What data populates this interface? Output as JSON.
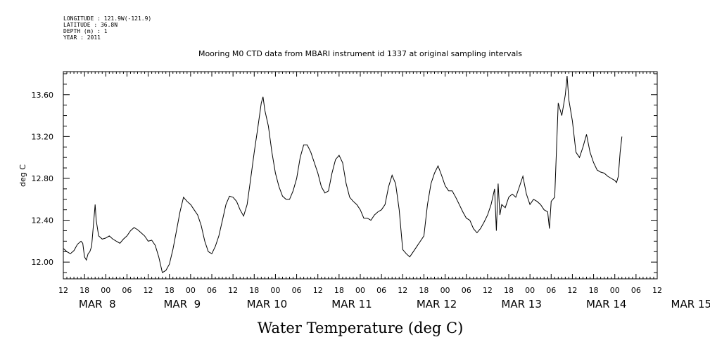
{
  "header": {
    "longitude": "LONGITUDE : 121.9W(-121.9)",
    "latitude": "LATITUDE : 36.8N",
    "depth": "DEPTH (m) : 1",
    "year": "YEAR : 2011"
  },
  "chart_data": {
    "type": "line",
    "title": "Mooring M0 CTD data from MBARI instrument id 1337 at original sampling intervals",
    "xlabel": "Water Temperature (deg C)",
    "ylabel": "deg C",
    "xlim_hours": [
      0,
      168
    ],
    "ylim": [
      11.84,
      13.82
    ],
    "y_ticks": [
      "12.00",
      "12.40",
      "12.80",
      "13.20",
      "13.60"
    ],
    "x_hour_labels": [
      "12",
      "18",
      "00",
      "06",
      "12",
      "18",
      "00",
      "06",
      "12",
      "18",
      "00",
      "06",
      "12",
      "18",
      "00",
      "06",
      "12",
      "18",
      "00",
      "06",
      "12",
      "18",
      "00",
      "06",
      "12",
      "18",
      "00",
      "06",
      "12"
    ],
    "x_day_labels": [
      "MAR  8",
      "MAR  9",
      "MAR 10",
      "MAR 11",
      "MAR 12",
      "MAR 13",
      "MAR 14",
      "MAR 15"
    ],
    "grid": false,
    "series": [
      {
        "points": [
          [
            0,
            12.13
          ],
          [
            1,
            12.1
          ],
          [
            2,
            12.08
          ],
          [
            3,
            12.11
          ],
          [
            4,
            12.17
          ],
          [
            5,
            12.2
          ],
          [
            5.5,
            12.18
          ],
          [
            6,
            12.05
          ],
          [
            6.5,
            12.02
          ],
          [
            7,
            12.08
          ],
          [
            7.5,
            12.1
          ],
          [
            8,
            12.15
          ],
          [
            8.5,
            12.35
          ],
          [
            9,
            12.55
          ],
          [
            9.3,
            12.4
          ],
          [
            10,
            12.25
          ],
          [
            11,
            12.22
          ],
          [
            12,
            12.23
          ],
          [
            13,
            12.25
          ],
          [
            14,
            12.22
          ],
          [
            15,
            12.2
          ],
          [
            16,
            12.18
          ],
          [
            17,
            12.22
          ],
          [
            18,
            12.25
          ],
          [
            19,
            12.3
          ],
          [
            20,
            12.33
          ],
          [
            21,
            12.31
          ],
          [
            22,
            12.28
          ],
          [
            23,
            12.25
          ],
          [
            24,
            12.2
          ],
          [
            25,
            12.21
          ],
          [
            26,
            12.16
          ],
          [
            27,
            12.05
          ],
          [
            28,
            11.9
          ],
          [
            29,
            11.92
          ],
          [
            30,
            11.98
          ],
          [
            31,
            12.12
          ],
          [
            32,
            12.3
          ],
          [
            33,
            12.48
          ],
          [
            34,
            12.62
          ],
          [
            35,
            12.58
          ],
          [
            36,
            12.55
          ],
          [
            37,
            12.5
          ],
          [
            38,
            12.45
          ],
          [
            39,
            12.35
          ],
          [
            40,
            12.2
          ],
          [
            41,
            12.1
          ],
          [
            42,
            12.08
          ],
          [
            43,
            12.15
          ],
          [
            44,
            12.25
          ],
          [
            45,
            12.4
          ],
          [
            46,
            12.55
          ],
          [
            47,
            12.63
          ],
          [
            48,
            12.62
          ],
          [
            49,
            12.58
          ],
          [
            50,
            12.5
          ],
          [
            51,
            12.44
          ],
          [
            52,
            12.55
          ],
          [
            53,
            12.8
          ],
          [
            54,
            13.05
          ],
          [
            55,
            13.28
          ],
          [
            56,
            13.52
          ],
          [
            56.5,
            13.58
          ],
          [
            57,
            13.45
          ],
          [
            58,
            13.3
          ],
          [
            59,
            13.05
          ],
          [
            60,
            12.85
          ],
          [
            61,
            12.72
          ],
          [
            62,
            12.63
          ],
          [
            63,
            12.6
          ],
          [
            64,
            12.6
          ],
          [
            65,
            12.68
          ],
          [
            66,
            12.8
          ],
          [
            67,
            13.0
          ],
          [
            68,
            13.12
          ],
          [
            69,
            13.12
          ],
          [
            70,
            13.05
          ],
          [
            71,
            12.95
          ],
          [
            72,
            12.85
          ],
          [
            73,
            12.72
          ],
          [
            74,
            12.66
          ],
          [
            75,
            12.68
          ],
          [
            76,
            12.85
          ],
          [
            77,
            12.98
          ],
          [
            78,
            13.02
          ],
          [
            79,
            12.95
          ],
          [
            80,
            12.75
          ],
          [
            81,
            12.62
          ],
          [
            82,
            12.58
          ],
          [
            83,
            12.55
          ],
          [
            84,
            12.5
          ],
          [
            85,
            12.42
          ],
          [
            86,
            12.42
          ],
          [
            87,
            12.4
          ],
          [
            88,
            12.45
          ],
          [
            89,
            12.48
          ],
          [
            90,
            12.5
          ],
          [
            91,
            12.55
          ],
          [
            92,
            12.72
          ],
          [
            93,
            12.83
          ],
          [
            94,
            12.75
          ],
          [
            95,
            12.5
          ],
          [
            96,
            12.12
          ],
          [
            97,
            12.08
          ],
          [
            98,
            12.05
          ],
          [
            99,
            12.1
          ],
          [
            100,
            12.15
          ],
          [
            101,
            12.2
          ],
          [
            102,
            12.25
          ],
          [
            103,
            12.55
          ],
          [
            104,
            12.75
          ],
          [
            105,
            12.85
          ],
          [
            106,
            12.92
          ],
          [
            107,
            12.83
          ],
          [
            108,
            12.73
          ],
          [
            109,
            12.68
          ],
          [
            110,
            12.68
          ],
          [
            111,
            12.62
          ],
          [
            112,
            12.55
          ],
          [
            113,
            12.48
          ],
          [
            114,
            12.42
          ],
          [
            115,
            12.4
          ],
          [
            116,
            12.32
          ],
          [
            117,
            12.28
          ],
          [
            118,
            12.32
          ],
          [
            119,
            12.38
          ],
          [
            120,
            12.45
          ],
          [
            121,
            12.55
          ],
          [
            122,
            12.7
          ],
          [
            122.5,
            12.3
          ],
          [
            123,
            12.75
          ],
          [
            123.5,
            12.45
          ],
          [
            124,
            12.55
          ],
          [
            125,
            12.52
          ],
          [
            126,
            12.62
          ],
          [
            127,
            12.65
          ],
          [
            128,
            12.62
          ],
          [
            129,
            12.72
          ],
          [
            130,
            12.82
          ],
          [
            131,
            12.65
          ],
          [
            132,
            12.55
          ],
          [
            133,
            12.6
          ],
          [
            134,
            12.58
          ],
          [
            135,
            12.55
          ],
          [
            136,
            12.5
          ],
          [
            137,
            12.48
          ],
          [
            137.5,
            12.32
          ],
          [
            138,
            12.58
          ],
          [
            139,
            12.62
          ],
          [
            140,
            13.52
          ],
          [
            141,
            13.4
          ],
          [
            142,
            13.6
          ],
          [
            142.5,
            13.78
          ],
          [
            143,
            13.55
          ],
          [
            144,
            13.35
          ],
          [
            145,
            13.05
          ],
          [
            146,
            13.0
          ],
          [
            147,
            13.1
          ],
          [
            148,
            13.22
          ],
          [
            149,
            13.05
          ],
          [
            150,
            12.95
          ],
          [
            151,
            12.88
          ],
          [
            152,
            12.86
          ],
          [
            153,
            12.85
          ],
          [
            154,
            12.82
          ],
          [
            155,
            12.8
          ],
          [
            156,
            12.78
          ],
          [
            156.5,
            12.76
          ],
          [
            157,
            12.82
          ],
          [
            157.5,
            13.05
          ],
          [
            158,
            13.2
          ]
        ]
      }
    ]
  }
}
